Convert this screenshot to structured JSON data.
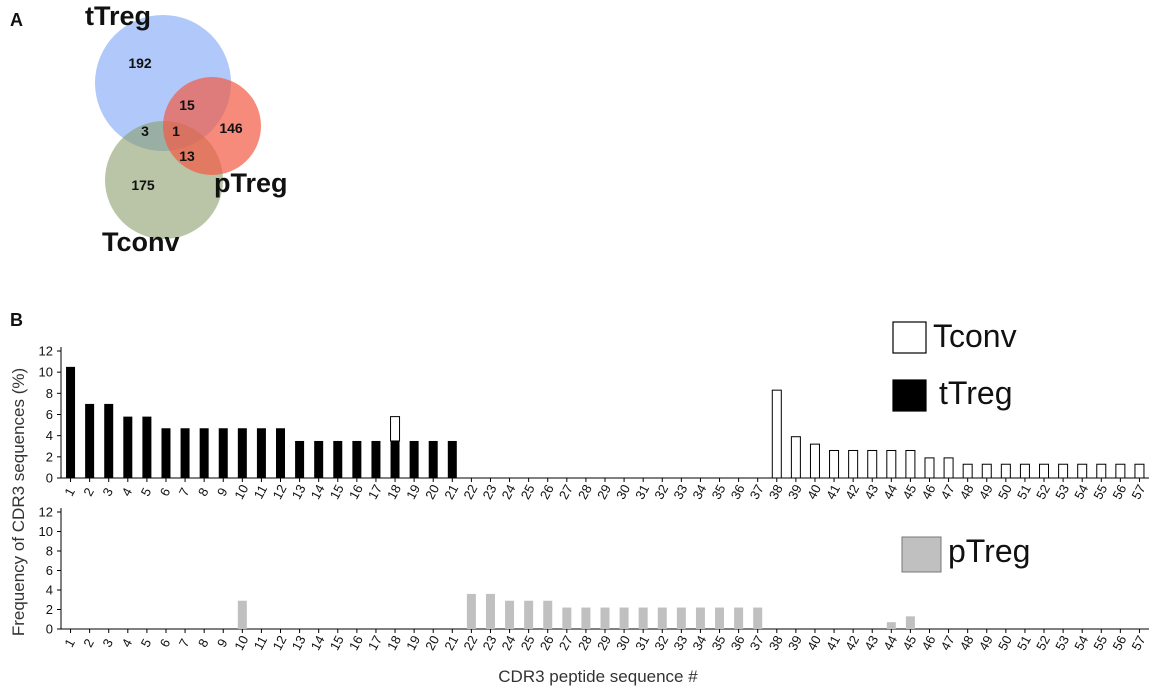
{
  "panels": {
    "A": "A",
    "B": "B"
  },
  "venn": {
    "sets": [
      {
        "name": "tTreg",
        "color": "#6f9df5"
      },
      {
        "name": "pTreg",
        "color": "#f25a45"
      },
      {
        "name": "Tconv",
        "color": "#8a9e6a"
      }
    ],
    "regions": {
      "tTreg_only": "192",
      "pTreg_only": "146",
      "Tconv_only": "175",
      "tTreg_pTreg": "15",
      "tTreg_Tconv": "3",
      "pTreg_Tconv": "13",
      "all_three": "1"
    }
  },
  "chart_data": [
    {
      "type": "bar",
      "stacked": true,
      "xlabel": "",
      "ylabel": "Frequency of CDR3 sequences (%)",
      "ylim": [
        0,
        12
      ],
      "yticks": [
        0,
        2,
        4,
        6,
        8,
        10,
        12
      ],
      "categories": [
        "1",
        "2",
        "3",
        "4",
        "5",
        "6",
        "7",
        "8",
        "9",
        "10",
        "11",
        "12",
        "13",
        "14",
        "15",
        "16",
        "17",
        "18",
        "19",
        "20",
        "21",
        "22",
        "23",
        "24",
        "25",
        "26",
        "27",
        "28",
        "29",
        "30",
        "31",
        "32",
        "33",
        "34",
        "35",
        "36",
        "37",
        "38",
        "39",
        "40",
        "41",
        "42",
        "43",
        "44",
        "45",
        "46",
        "47",
        "48",
        "49",
        "50",
        "51",
        "52",
        "53",
        "54",
        "55",
        "56",
        "57"
      ],
      "series": [
        {
          "name": "tTreg",
          "color": "#000000",
          "values": [
            10.5,
            7.0,
            7.0,
            5.8,
            5.8,
            4.7,
            4.7,
            4.7,
            4.7,
            4.7,
            4.7,
            4.7,
            3.5,
            3.5,
            3.5,
            3.5,
            3.5,
            3.5,
            3.5,
            3.5,
            3.5,
            0,
            0,
            0,
            0,
            0,
            0,
            0,
            0,
            0,
            0,
            0,
            0,
            0,
            0,
            0,
            0,
            0,
            0,
            0,
            0,
            0,
            0,
            0,
            0,
            0,
            0,
            0,
            0,
            0,
            0,
            0,
            0,
            0,
            0,
            0,
            0
          ]
        },
        {
          "name": "Tconv",
          "color": "#ffffff",
          "values": [
            0,
            0,
            0,
            0,
            0,
            0,
            0,
            0,
            0,
            0,
            0,
            0,
            0,
            0,
            0,
            0,
            0,
            2.3,
            0,
            0,
            0,
            0,
            0,
            0,
            0,
            0,
            0,
            0,
            0,
            0,
            0,
            0,
            0,
            0,
            0,
            0,
            0,
            8.3,
            3.9,
            3.2,
            2.6,
            2.6,
            2.6,
            2.6,
            2.6,
            1.9,
            1.9,
            1.3,
            1.3,
            1.3,
            1.3,
            1.3,
            1.3,
            1.3,
            1.3,
            1.3,
            1.3
          ]
        }
      ],
      "legend_position": "top-right"
    },
    {
      "type": "bar",
      "xlabel": "CDR3 peptide sequence #",
      "ylabel": "Frequency of CDR3 sequences (%)",
      "ylim": [
        0,
        12
      ],
      "yticks": [
        0,
        2,
        4,
        6,
        8,
        10,
        12
      ],
      "categories": [
        "1",
        "2",
        "3",
        "4",
        "5",
        "6",
        "7",
        "8",
        "9",
        "10",
        "11",
        "12",
        "13",
        "14",
        "15",
        "16",
        "17",
        "18",
        "19",
        "20",
        "21",
        "22",
        "23",
        "24",
        "25",
        "26",
        "27",
        "28",
        "29",
        "30",
        "31",
        "32",
        "33",
        "34",
        "35",
        "36",
        "37",
        "38",
        "39",
        "40",
        "41",
        "42",
        "43",
        "44",
        "45",
        "46",
        "47",
        "48",
        "49",
        "50",
        "51",
        "52",
        "53",
        "54",
        "55",
        "56",
        "57"
      ],
      "series": [
        {
          "name": "pTreg",
          "color": "#c0c0c0",
          "values": [
            0,
            0,
            0,
            0,
            0,
            0,
            0,
            0,
            0,
            2.9,
            0,
            0,
            0,
            0,
            0,
            0,
            0,
            0,
            0,
            0,
            0,
            3.6,
            3.6,
            2.9,
            2.9,
            2.9,
            2.2,
            2.2,
            2.2,
            2.2,
            2.2,
            2.2,
            2.2,
            2.2,
            2.2,
            2.2,
            2.2,
            0,
            0,
            0,
            0,
            0,
            0,
            0.7,
            1.3,
            0,
            0,
            0,
            0,
            0,
            0,
            0,
            0,
            0,
            0,
            0,
            0
          ]
        }
      ],
      "legend_position": "right"
    }
  ]
}
